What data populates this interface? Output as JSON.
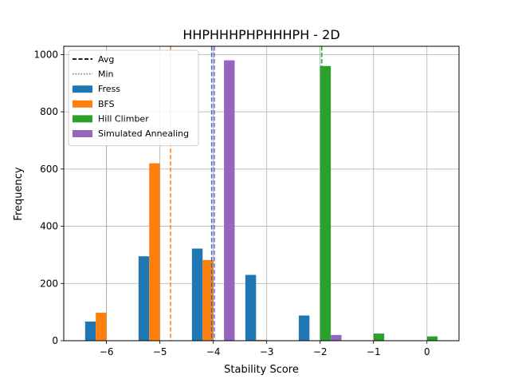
{
  "chart_data": {
    "type": "bar",
    "title": "HHPHHHPHPHHHPH - 2D",
    "xlabel": "Stability Score",
    "ylabel": "Frequency",
    "xlim": [
      -6.8,
      0.6
    ],
    "ylim": [
      0,
      1029
    ],
    "xticks": [
      -6,
      -5,
      -4,
      -3,
      -2,
      -1,
      0
    ],
    "xtick_labels": [
      "−6",
      "−5",
      "−4",
      "−3",
      "−2",
      "−1",
      "0"
    ],
    "yticks": [
      0,
      200,
      400,
      600,
      800,
      1000
    ],
    "ytick_labels": [
      "0",
      "200",
      "400",
      "600",
      "800",
      "1000"
    ],
    "grid": true,
    "legend_placement": "top-left",
    "legend_line_entries": [
      {
        "label": "Avg",
        "style": "dashed",
        "color": "#000000"
      },
      {
        "label": "Min",
        "style": "dotted",
        "color": "#808080"
      }
    ],
    "categories": [
      -6,
      -5,
      -4,
      -3,
      -2,
      -1,
      0
    ],
    "series": [
      {
        "name": "Fress",
        "color": "#1f77b4",
        "values": [
          67,
          295,
          322,
          230,
          88,
          0,
          0
        ],
        "avg": -4.03,
        "min": -6
      },
      {
        "name": "BFS",
        "color": "#ff7f0e",
        "values": [
          98,
          620,
          282,
          3,
          0,
          0,
          0
        ],
        "avg": -4.8,
        "min": -6
      },
      {
        "name": "Hill Climber",
        "color": "#2ca02c",
        "values": [
          0,
          0,
          0,
          0,
          960,
          25,
          15
        ],
        "avg": -1.97,
        "min": -2
      },
      {
        "name": "Simulated Annealing",
        "color": "#9467bd",
        "values": [
          0,
          0,
          980,
          0,
          20,
          0,
          0
        ],
        "avg": -3.98,
        "min": -4
      }
    ]
  }
}
